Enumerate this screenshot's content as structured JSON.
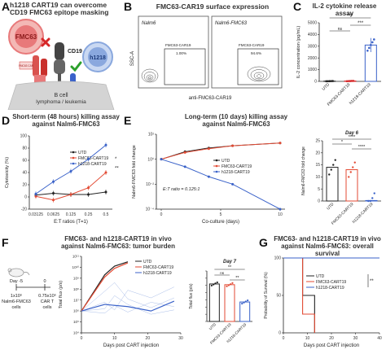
{
  "figure": {
    "panels": {
      "A": {
        "letter": "A",
        "title_line1": "h1218 CART19 can overcome",
        "title_line2": "CD19 FMC63 epitope masking",
        "labels": {
          "fmc63": "FMC63",
          "cd19": "CD19",
          "h1218": "h1218",
          "fmc63_cart": "FMC63 CAR",
          "h1218_cart": "h1218 CAR",
          "bcell1": "B cell",
          "bcell2": "lymphoma / leukemia"
        },
        "colors": {
          "fmc63": "#e8797a",
          "h1218": "#8aa8de",
          "cd19": "#555555",
          "cell": "#d4d4d4",
          "cross": "#d62728",
          "check": "#2ca02c"
        }
      },
      "B": {
        "letter": "B",
        "title": "FMC63-CAR19 surface expression",
        "ylabel": "SSC-A",
        "xlabel": "anti-FMC63-CAR19",
        "plots": [
          {
            "name": "Nalm6",
            "gate_label": "FMC63-CAR19",
            "gate_pct": "1.00%"
          },
          {
            "name": "Nalm6-FMC63",
            "gate_label": "FMC63-CAR19",
            "gate_pct": "94.6%"
          }
        ]
      },
      "C": {
        "letter": "C",
        "title": "IL-2 cytokine release assay",
        "ylabel": "IL-2 concentration (pg/mL)",
        "sig": [
          "***",
          "ns",
          "***"
        ],
        "chart_data": {
          "type": "bar",
          "categories": [
            "UTD",
            "FMC63-CART19",
            "h1218-CART19"
          ],
          "values": [
            20,
            30,
            3100
          ],
          "errors": [
            10,
            15,
            600
          ],
          "ylim": [
            0,
            5000
          ],
          "yticks": [
            0,
            1000,
            2000,
            3000,
            4000,
            5000
          ],
          "colors": [
            "#222222",
            "#d62728",
            "#3a62c9"
          ]
        }
      },
      "D": {
        "letter": "D",
        "title_line1": "Short-term (48 hours) killing assay",
        "title_line2": "against Nalm6-FMC63",
        "ylabel": "Cytotoxicity (%)",
        "xlabel": "E:T ratios (T=1)",
        "sig": [
          "*",
          "**"
        ],
        "chart_data": {
          "type": "line",
          "categories": [
            "0.03125",
            "0.0625",
            "0.125",
            "0.25",
            "0.5"
          ],
          "ylim": [
            -20,
            100
          ],
          "yticks": [
            -20,
            0,
            20,
            40,
            60,
            80,
            100
          ],
          "series": [
            {
              "name": "UTD",
              "values": [
                3,
                6,
                4,
                4,
                8
              ],
              "color": "#222222"
            },
            {
              "name": "FMC63-CART19",
              "values": [
                1,
                -5,
                4,
                15,
                40
              ],
              "color": "#e34a33"
            },
            {
              "name": "h1218-CART19",
              "values": [
                5,
                25,
                42,
                62,
                85
              ],
              "color": "#3a62c9"
            }
          ]
        }
      },
      "E": {
        "letter": "E",
        "title_line1": "Long-term (10 days) killing assay",
        "title_line2": "against Nalm6-FMC63",
        "ylabel": "Nalm6-FMC63 fold change",
        "xlabel": "Co-culture (days)",
        "et_ratio": "E:T ratio = 0.125:1",
        "inset_title": "Day 6",
        "inset_ylabel": "Nalm6-FMC63 fold change",
        "inset_sig": [
          "*",
          "****",
          "****"
        ],
        "chart_data": [
          {
            "type": "line",
            "x": [
              0,
              2,
              4,
              6,
              10
            ],
            "xticks": [
              0,
              5,
              10
            ],
            "ylim_log10": [
              -4,
              2
            ],
            "ytick_labels": [
              "10⁻⁴",
              "10⁻²",
              "10⁰",
              "10²"
            ],
            "series": [
              {
                "name": "UTD",
                "values": [
                  1,
                  4,
                  8,
                  12,
                  20
                ],
                "color": "#222222"
              },
              {
                "name": "FMC63-CART19",
                "values": [
                  1,
                  3.5,
                  7,
                  12,
                  20
                ],
                "color": "#e34a33"
              },
              {
                "name": "h1218-CART19",
                "values": [
                  1,
                  0.25,
                  0.04,
                  0.01,
                  0.0001
                ],
                "color": "#3a62c9"
              }
            ]
          },
          {
            "type": "bar",
            "categories": [
              "UTD",
              "FMC63-CART19",
              "h1218-CART19"
            ],
            "values": [
              14,
              13,
              0.2
            ],
            "ylim": [
              0,
              25
            ],
            "yticks": [
              0,
              5,
              10,
              15,
              20,
              25
            ],
            "colors": [
              "#222222",
              "#e34a33",
              "#3a62c9"
            ]
          }
        ]
      },
      "F": {
        "letter": "F",
        "title_line1": "FMC63- and h1218-CART19 in vivo",
        "title_line2": "against Nalm6-FMC63: tumor burden",
        "day_neg5": "Day -5",
        "day_0": "0",
        "cells1_line1": "1x10⁶",
        "cells1_line2": "Nalm6-FMC63",
        "cells1_line3": "cells",
        "cells2_line1": "0.75x10⁶",
        "cells2_line2": "CAR T",
        "cells2_line3": "cells",
        "ylabel": "Total flux (p/s)",
        "xlabel": "Days post CART injection",
        "inset_title": "Day 7",
        "inset_ylabel": "Total flux (p/s)",
        "inset_sig": [
          "**",
          "ns",
          "**"
        ],
        "chart_data": [
          {
            "type": "line",
            "x": [
              0,
              7,
              10,
              14,
              21,
              28
            ],
            "xticks": [
              0,
              10,
              20,
              30
            ],
            "ylim_log10": [
              4,
              11
            ],
            "ytick_labels": [
              "10⁴",
              "10⁵",
              "10⁶",
              "10⁷",
              "10⁸",
              "10⁹",
              "10¹⁰",
              "10¹¹"
            ],
            "series": [
              {
                "name": "UTD",
                "x": [
                  0,
                  7,
                  10,
                  14
                ],
                "log10_values": [
                  6.0,
                  9.3,
                  10.1,
                  10.5
                ],
                "color": "#222222"
              },
              {
                "name": "FMC63-CART19",
                "x": [
                  0,
                  7,
                  10,
                  14
                ],
                "log10_values": [
                  6.0,
                  9.1,
                  9.9,
                  10.4
                ],
                "color": "#e34a33"
              },
              {
                "name": "h1218-CART19",
                "x": [
                  0,
                  7,
                  14,
                  21,
                  28
                ],
                "log10_values": [
                  6.0,
                  6.6,
                  6.4,
                  6.0,
                  6.9
                ],
                "color": "#3a62c9"
              }
            ]
          },
          {
            "type": "bar",
            "categories": [
              "UTD",
              "FMC63-CART19",
              "h1218-CART19"
            ],
            "log10_values": [
              9.2,
              9.1,
              6.7
            ],
            "ylim_log10": [
              4,
              11
            ],
            "colors": [
              "#222222",
              "#e34a33",
              "#3a62c9"
            ]
          }
        ]
      },
      "G": {
        "letter": "G",
        "title_line1": "FMC63- and h1218-CART19 in vivo",
        "title_line2": "against Nalm6-FMC63: overall survival",
        "ylabel": "Probability of Survival (%)",
        "xlabel": "Days post CART injection",
        "sig": "**",
        "chart_data": {
          "type": "line",
          "xlim": [
            0,
            40
          ],
          "xticks": [
            0,
            10,
            20,
            30,
            40
          ],
          "ylim": [
            0,
            100
          ],
          "yticks": [
            0,
            50,
            100
          ],
          "series": [
            {
              "name": "UTD",
              "steps": [
                [
                  0,
                  100
                ],
                [
                  8,
                  100
                ],
                [
                  8,
                  50
                ],
                [
                  13,
                  50
                ],
                [
                  13,
                  0
                ]
              ],
              "color": "#222222"
            },
            {
              "name": "FMC63-CART19",
              "steps": [
                [
                  0,
                  100
                ],
                [
                  8,
                  100
                ],
                [
                  8,
                  25
                ],
                [
                  13,
                  25
                ],
                [
                  13,
                  0
                ]
              ],
              "color": "#e34a33"
            },
            {
              "name": "h1218-CART19",
              "steps": [
                [
                  0,
                  100
                ],
                [
                  40,
                  100
                ]
              ],
              "color": "#3a62c9"
            }
          ]
        }
      }
    }
  }
}
